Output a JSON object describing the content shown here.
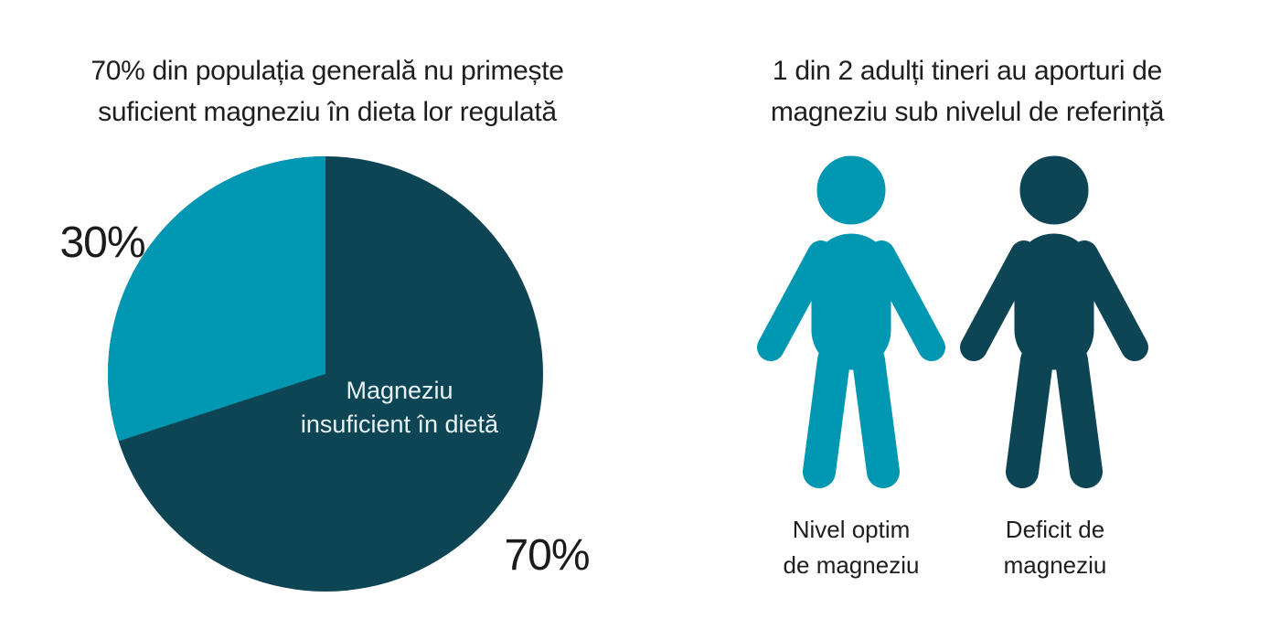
{
  "page": {
    "background": "#ffffff"
  },
  "colors": {
    "light_teal": "#0097b2",
    "dark_teal": "#0e4555",
    "text_dark": "#1e1e1e",
    "slice_label_text": "#e8f3f5"
  },
  "left_panel": {
    "title_line1": "70% din populația generală nu primește",
    "title_line2": "suficient magneziu în dieta lor regulată",
    "pct_small": "30%",
    "pct_big": "70%",
    "slice_label_line1": "Magneziu",
    "slice_label_line2": "insuficient în dietă"
  },
  "right_panel": {
    "title_line1": "1 din 2 adulți tineri au aporturi de",
    "title_line2": "magneziu sub nivelul de referință",
    "person1_label_line1": "Nivel optim",
    "person1_label_line2": "de magneziu",
    "person2_label_line1": "Deficit de",
    "person2_label_line2": "magneziu"
  },
  "chart_data": [
    {
      "type": "pie",
      "title": "70% din populația generală nu primește suficient magneziu în dieta lor regulată",
      "slices": [
        {
          "label": "Magneziu insuficient în dietă",
          "value": 70,
          "color": "#0e4555",
          "pct_label": "70%"
        },
        {
          "label": "",
          "value": 30,
          "color": "#0097b2",
          "pct_label": "30%"
        }
      ],
      "start_angle": "12-oclock",
      "minor_slice_direction": "counterclockwise",
      "legend": "none",
      "radius_px": 238
    },
    {
      "type": "pictograph",
      "title": "1 din 2 adulți tineri au aporturi de magneziu sub nivelul de referință",
      "categories": [
        "Nivel optim de magneziu",
        "Deficit de magneziu"
      ],
      "values": [
        1,
        1
      ],
      "total": 2,
      "colors": [
        "#0097b2",
        "#0e4555"
      ],
      "icon": "person"
    }
  ]
}
